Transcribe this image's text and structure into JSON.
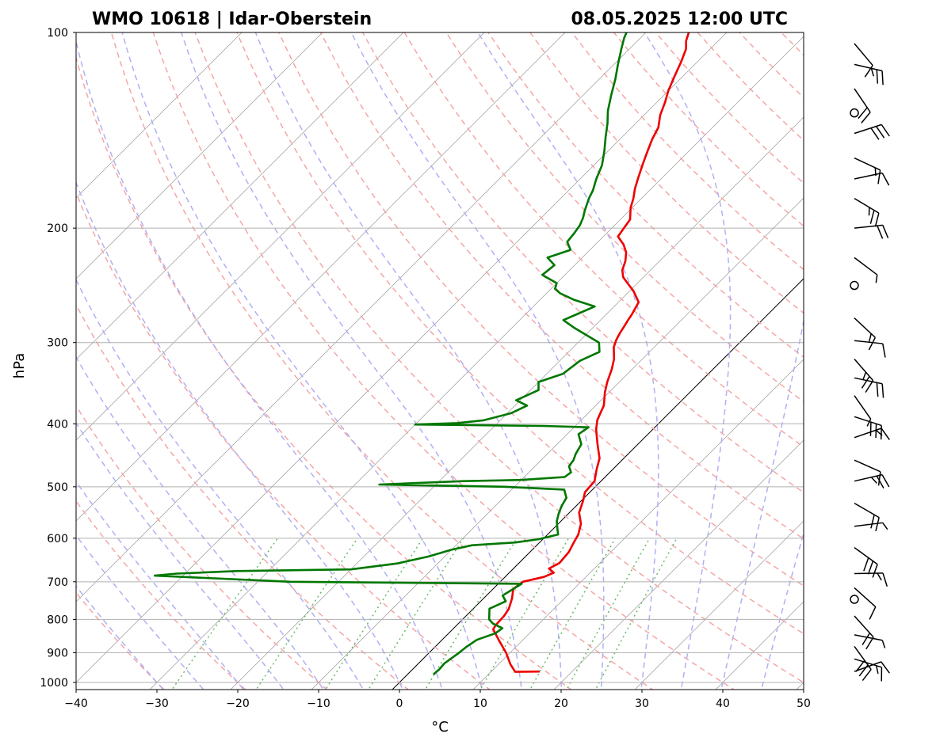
{
  "chart_data": {
    "type": "line",
    "title_left": "WMO 10618 | Idar-Oberstein",
    "title_right": "08.05.2025 12:00 UTC",
    "xlabel": "°C",
    "ylabel": "hPa",
    "x_ticks": [
      "−40",
      "−30",
      "−20",
      "−10",
      "0",
      "10",
      "20",
      "30",
      "40",
      "50"
    ],
    "y_ticks": [
      "100",
      "200",
      "300",
      "400",
      "500",
      "600",
      "700",
      "800",
      "900",
      "1000"
    ],
    "xlim": [
      -40,
      50
    ],
    "ylim": [
      1050,
      100
    ],
    "y_scale": "log",
    "grid": true,
    "skew": "x",
    "colors": {
      "temperature": "#ee0000",
      "dewpoint": "#007700",
      "dry_adiabats": "#f5a6a6",
      "moist_adiabats": "#b0b0f3",
      "mixing_ratio": "#66bb66",
      "isotherms": "#999999",
      "zero_isotherm": "#000000",
      "grid": "#b0b0b0"
    },
    "series": [
      {
        "id": "temperature",
        "points": [
          [
            16,
            962
          ],
          [
            13,
            963
          ],
          [
            11.5,
            938
          ],
          [
            9.5,
            900
          ],
          [
            7,
            860
          ],
          [
            5,
            828
          ],
          [
            4.8,
            815
          ],
          [
            4.7,
            790
          ],
          [
            4.4,
            770
          ],
          [
            3.5,
            742
          ],
          [
            2.5,
            718
          ],
          [
            2.8,
            700
          ],
          [
            4.8,
            688
          ],
          [
            5.5,
            678
          ],
          [
            4.4,
            668
          ],
          [
            5,
            655
          ],
          [
            4.8,
            630
          ],
          [
            4.2,
            608
          ],
          [
            3.8,
            592
          ],
          [
            2.8,
            570
          ],
          [
            1.2,
            548
          ],
          [
            0.2,
            525
          ],
          [
            -0.6,
            510
          ],
          [
            -0.8,
            490
          ],
          [
            -2,
            470
          ],
          [
            -3,
            452
          ],
          [
            -5,
            430
          ],
          [
            -7,
            408
          ],
          [
            -8,
            395
          ],
          [
            -8.5,
            385
          ],
          [
            -9,
            375
          ],
          [
            -10.5,
            358
          ],
          [
            -11.5,
            345
          ],
          [
            -12.5,
            330
          ],
          [
            -13.5,
            318
          ],
          [
            -15,
            305
          ],
          [
            -15.6,
            297
          ],
          [
            -16,
            290
          ],
          [
            -16.3,
            283
          ],
          [
            -16.6,
            277
          ],
          [
            -16.8,
            272
          ],
          [
            -17.5,
            260
          ],
          [
            -19.5,
            250
          ],
          [
            -21,
            244
          ],
          [
            -22.5,
            238
          ],
          [
            -23.5,
            232
          ],
          [
            -24.2,
            225
          ],
          [
            -25.2,
            218
          ],
          [
            -26.5,
            212
          ],
          [
            -28.2,
            206
          ],
          [
            -28.5,
            200
          ],
          [
            -28.8,
            194
          ],
          [
            -30.2,
            186
          ],
          [
            -31,
            180
          ],
          [
            -32,
            174
          ],
          [
            -33,
            167
          ],
          [
            -34,
            160
          ],
          [
            -35,
            153
          ],
          [
            -36,
            146
          ],
          [
            -36.7,
            140
          ],
          [
            -38,
            134
          ],
          [
            -39,
            128
          ],
          [
            -40,
            123
          ],
          [
            -41,
            117
          ],
          [
            -42,
            111
          ],
          [
            -43,
            106
          ],
          [
            -44,
            103
          ],
          [
            -44.7,
            100
          ]
        ]
      },
      {
        "id": "dewpoint",
        "points": [
          [
            3.2,
            972
          ],
          [
            3.3,
            955
          ],
          [
            3.2,
            935
          ],
          [
            3.7,
            900
          ],
          [
            3.9,
            880
          ],
          [
            4.3,
            860
          ],
          [
            5.8,
            840
          ],
          [
            6,
            825
          ],
          [
            4.3,
            812
          ],
          [
            3.3,
            800
          ],
          [
            2,
            770
          ],
          [
            3.1,
            750
          ],
          [
            2,
            735
          ],
          [
            2.9,
            705
          ],
          [
            -26,
            700
          ],
          [
            -43.5,
            685
          ],
          [
            -41,
            680
          ],
          [
            -34,
            674
          ],
          [
            -20,
            670
          ],
          [
            -15,
            656
          ],
          [
            -12,
            640
          ],
          [
            -10,
            625
          ],
          [
            -8,
            615
          ],
          [
            -3,
            609
          ],
          [
            -0.5,
            602
          ],
          [
            1.3,
            592
          ],
          [
            0.5,
            580
          ],
          [
            -0.5,
            565
          ],
          [
            -1.2,
            550
          ],
          [
            -1.8,
            535
          ],
          [
            -2.2,
            520
          ],
          [
            -3.5,
            505
          ],
          [
            -11,
            500
          ],
          [
            -27,
            496
          ],
          [
            -17,
            490
          ],
          [
            -10,
            488
          ],
          [
            -5,
            483
          ],
          [
            -4.8,
            475
          ],
          [
            -5.8,
            465
          ],
          [
            -6,
            455
          ],
          [
            -6.5,
            445
          ],
          [
            -7,
            430
          ],
          [
            -8.6,
            415
          ],
          [
            -8.2,
            405
          ],
          [
            -14,
            403
          ],
          [
            -30,
            401
          ],
          [
            -25,
            399
          ],
          [
            -22,
            395
          ],
          [
            -19.5,
            385
          ],
          [
            -18.5,
            375
          ],
          [
            -20.5,
            368
          ],
          [
            -19,
            355
          ],
          [
            -20,
            345
          ],
          [
            -18,
            335
          ],
          [
            -17.5,
            320
          ],
          [
            -16.2,
            310
          ],
          [
            -17.4,
            300
          ],
          [
            -22.2,
            285
          ],
          [
            -24.6,
            277
          ],
          [
            -23.6,
            271
          ],
          [
            -22.4,
            264
          ],
          [
            -25.7,
            258
          ],
          [
            -28.3,
            252
          ],
          [
            -29.5,
            248
          ],
          [
            -30,
            243
          ],
          [
            -32.8,
            236
          ],
          [
            -32.5,
            228
          ],
          [
            -34.3,
            222
          ],
          [
            -32.4,
            216
          ],
          [
            -33.8,
            210
          ],
          [
            -34,
            204
          ],
          [
            -34.3,
            198
          ],
          [
            -34.8,
            193
          ],
          [
            -35.5,
            188
          ],
          [
            -36,
            184
          ],
          [
            -36.5,
            180
          ],
          [
            -37,
            175
          ],
          [
            -38,
            168
          ],
          [
            -39,
            160
          ],
          [
            -40.5,
            152
          ],
          [
            -42,
            145
          ],
          [
            -43.5,
            138
          ],
          [
            -45,
            132
          ],
          [
            -46.5,
            125
          ],
          [
            -48,
            118
          ],
          [
            -49.5,
            112
          ],
          [
            -51,
            106
          ],
          [
            -52,
            102
          ],
          [
            -52.4,
            100
          ]
        ]
      }
    ],
    "wind_barbs": [
      {
        "p": 962,
        "symbol": "barb"
      },
      {
        "p": 920,
        "symbol": "barb"
      },
      {
        "p": 880,
        "symbol": "barb"
      },
      {
        "p": 845,
        "symbol": "barb"
      },
      {
        "p": 790,
        "symbol": "barb"
      },
      {
        "p": 745,
        "symbol": "calm"
      },
      {
        "p": 715,
        "symbol": "barb"
      },
      {
        "p": 680,
        "symbol": "barb"
      },
      {
        "p": 620,
        "symbol": "barb"
      },
      {
        "p": 575,
        "symbol": "barb"
      },
      {
        "p": 530,
        "symbol": "barb"
      },
      {
        "p": 490,
        "symbol": "barb"
      },
      {
        "p": 455,
        "symbol": "barb"
      },
      {
        "p": 420,
        "symbol": "barb"
      },
      {
        "p": 390,
        "symbol": "barb"
      },
      {
        "p": 362,
        "symbol": "barb"
      },
      {
        "p": 340,
        "symbol": "barb"
      },
      {
        "p": 318,
        "symbol": "barb"
      },
      {
        "p": 298,
        "symbol": "barb"
      },
      {
        "p": 275,
        "symbol": "barb"
      },
      {
        "p": 245,
        "symbol": "calm"
      },
      {
        "p": 222,
        "symbol": "barb"
      },
      {
        "p": 200,
        "symbol": "barb"
      },
      {
        "p": 180,
        "symbol": "barb"
      },
      {
        "p": 168,
        "symbol": "barb"
      },
      {
        "p": 156,
        "symbol": "barb"
      },
      {
        "p": 143,
        "symbol": "barb"
      },
      {
        "p": 133,
        "symbol": "calm"
      },
      {
        "p": 122,
        "symbol": "barb"
      },
      {
        "p": 112,
        "symbol": "barb"
      },
      {
        "p": 104,
        "symbol": "barb"
      }
    ]
  }
}
